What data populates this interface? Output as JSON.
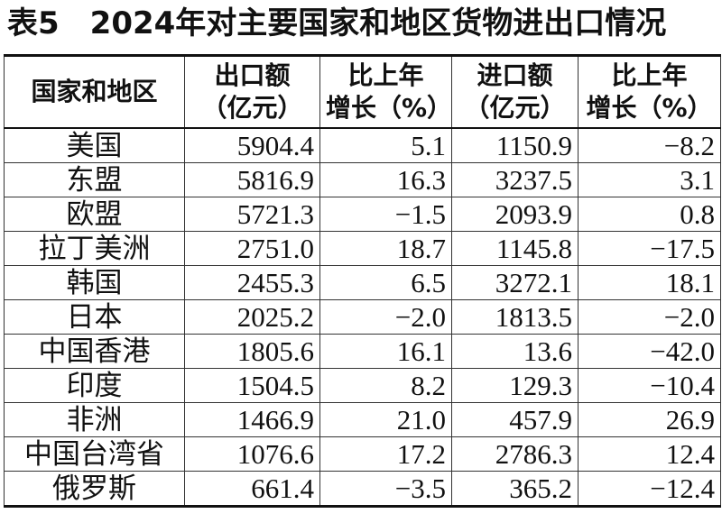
{
  "title": "表5　2024年对主要国家和地区货物进出口情况",
  "table": {
    "header": [
      [
        "国家和地区"
      ],
      [
        "出口额",
        "（亿元）"
      ],
      [
        "比上年",
        "增长（%）"
      ],
      [
        "进口额",
        "（亿元）"
      ],
      [
        "比上年",
        "增长（%）"
      ]
    ],
    "rows": [
      [
        "美国",
        "5904.4",
        "5.1",
        "1150.9",
        "−8.2"
      ],
      [
        "东盟",
        "5816.9",
        "16.3",
        "3237.5",
        "3.1"
      ],
      [
        "欧盟",
        "5721.3",
        "−1.5",
        "2093.9",
        "0.8"
      ],
      [
        "拉丁美洲",
        "2751.0",
        "18.7",
        "1145.8",
        "−17.5"
      ],
      [
        "韩国",
        "2455.3",
        "6.5",
        "3272.1",
        "18.1"
      ],
      [
        "日本",
        "2025.2",
        "−2.0",
        "1813.5",
        "−2.0"
      ],
      [
        "中国香港",
        "1805.6",
        "16.1",
        "13.6",
        "−42.0"
      ],
      [
        "印度",
        "1504.5",
        "8.2",
        "129.3",
        "−10.4"
      ],
      [
        "非洲",
        "1466.9",
        "21.0",
        "457.9",
        "26.9"
      ],
      [
        "中国台湾省",
        "1076.6",
        "17.2",
        "2786.3",
        "12.4"
      ],
      [
        "俄罗斯",
        "661.4",
        "−3.5",
        "365.2",
        "−12.4"
      ]
    ]
  }
}
